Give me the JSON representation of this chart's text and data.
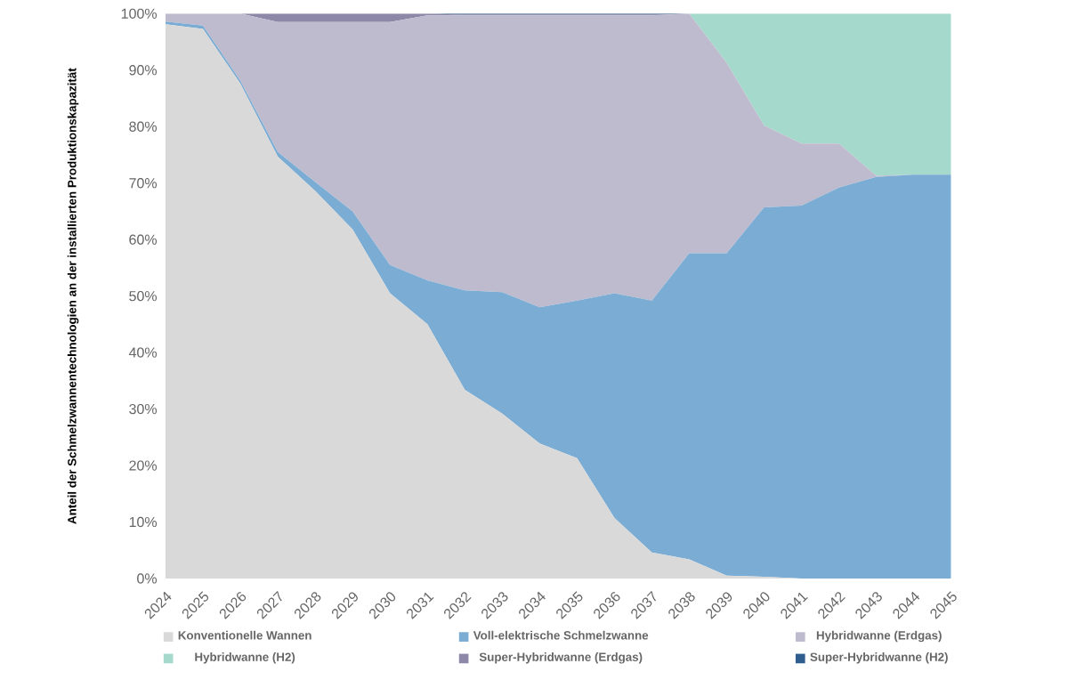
{
  "chart_data": {
    "type": "area",
    "stacked": true,
    "ylabel": "Anteil der Schmelzwannentechnologien an der installierten Produktionskapazität",
    "categories": [
      "2024",
      "2025",
      "2026",
      "2027",
      "2028",
      "2029",
      "2030",
      "2031",
      "2032",
      "2033",
      "2034",
      "2035",
      "2036",
      "2037",
      "2038",
      "2039",
      "2040",
      "2041",
      "2042",
      "2043",
      "2044",
      "2045"
    ],
    "ylim": [
      0,
      100
    ],
    "yticks": [
      {
        "value": 0,
        "label": "0%"
      },
      {
        "value": 10,
        "label": "10%"
      },
      {
        "value": 20,
        "label": "20%"
      },
      {
        "value": 30,
        "label": "30%"
      },
      {
        "value": 40,
        "label": "40%"
      },
      {
        "value": 50,
        "label": "50%"
      },
      {
        "value": 60,
        "label": "60%"
      },
      {
        "value": 70,
        "label": "70%"
      },
      {
        "value": 80,
        "label": "80%"
      },
      {
        "value": 90,
        "label": "90%"
      },
      {
        "value": 100,
        "label": "100%"
      }
    ],
    "legend": "bottom",
    "grid": false,
    "series": [
      {
        "name": "Konventionelle Wannen",
        "color": "#d9d9d9",
        "values": [
          98.1,
          97.3,
          87.6,
          74.7,
          68.6,
          61.8,
          50.5,
          45,
          33.4,
          29.2,
          23.9,
          21.3,
          10.7,
          4.6,
          3.4,
          0.5,
          0.3,
          0,
          0,
          0,
          0,
          0
        ]
      },
      {
        "name": "Voll-elektrische Schmelzwanne",
        "color": "#7bacd3",
        "values": [
          0.5,
          0.6,
          0.5,
          0.8,
          1.6,
          3.2,
          5,
          7.8,
          17.6,
          21.5,
          24.1,
          27.9,
          39.8,
          44.6,
          54.2,
          57.1,
          65.4,
          66,
          69.2,
          71.1,
          71.5,
          71.5
        ]
      },
      {
        "name": "Hybridwanne (Erdgas)",
        "color": "#bfbbcf",
        "values": [
          1.4,
          2.1,
          11.9,
          23,
          28.3,
          33.5,
          43,
          46.9,
          48.7,
          49,
          51.7,
          50.5,
          49.2,
          50.5,
          42.4,
          33.7,
          14.5,
          11,
          7.8,
          0.2,
          0,
          0
        ]
      },
      {
        "name": "Hybridwanne (H2)",
        "color": "#a5d9cc",
        "values": [
          0,
          0,
          0,
          0,
          0,
          0,
          0,
          0,
          0,
          0,
          0,
          0,
          0,
          0,
          0,
          8.7,
          19.8,
          23,
          23,
          28.7,
          28.5,
          28.5
        ]
      },
      {
        "name": "Super-Hybridwanne (Erdgas)",
        "color": "#8e88a8",
        "values": [
          0,
          0,
          0,
          1.5,
          1.5,
          1.5,
          1.5,
          0.3,
          0.1,
          0.1,
          0.1,
          0.1,
          0.1,
          0.1,
          0,
          0,
          0,
          0,
          0,
          0,
          0,
          0
        ]
      },
      {
        "name": "Super-Hybridwanne (H2)",
        "color": "#2e5d8e",
        "values": [
          0,
          0,
          0,
          0,
          0,
          0,
          0,
          0,
          0.2,
          0.2,
          0.2,
          0.2,
          0.2,
          0.2,
          0,
          0,
          0,
          0,
          0,
          0,
          0,
          0
        ]
      }
    ]
  }
}
